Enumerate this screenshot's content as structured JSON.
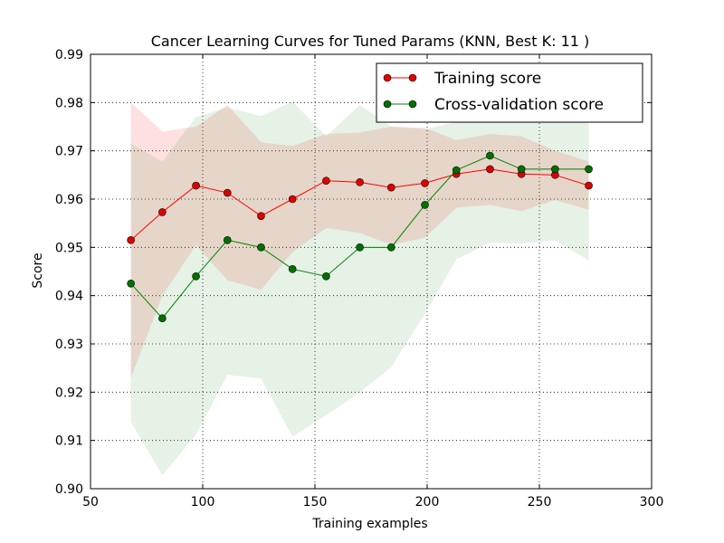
{
  "chart_data": {
    "type": "line",
    "title": "Cancer Learning Curves for Tuned Params (KNN, Best K: 11 )",
    "xlabel": "Training examples",
    "ylabel": "Score",
    "xlim": [
      50,
      300
    ],
    "ylim": [
      0.9,
      0.99
    ],
    "xticks": [
      "50",
      "100",
      "150",
      "200",
      "250",
      "300"
    ],
    "yticks": [
      "0.90",
      "0.91",
      "0.92",
      "0.93",
      "0.94",
      "0.95",
      "0.96",
      "0.97",
      "0.98",
      "0.99"
    ],
    "grid": true,
    "legend_position": "top-right",
    "x": [
      68,
      82,
      97,
      111,
      126,
      140,
      155,
      170,
      184,
      199,
      213,
      228,
      242,
      257,
      272
    ],
    "series": [
      {
        "name": "Training score",
        "color": "#ff0000",
        "marker_color": "#e00000",
        "values": [
          0.9515,
          0.9573,
          0.9628,
          0.9613,
          0.9565,
          0.96,
          0.9638,
          0.9635,
          0.9624,
          0.9633,
          0.9652,
          0.9662,
          0.9652,
          0.965,
          0.9628
        ],
        "band_upper": [
          0.98,
          0.974,
          0.975,
          0.9795,
          0.9718,
          0.971,
          0.9735,
          0.9738,
          0.975,
          0.9748,
          0.9722,
          0.9735,
          0.973,
          0.97,
          0.9678
        ],
        "band_lower": [
          0.923,
          0.94,
          0.9505,
          0.9432,
          0.9412,
          0.949,
          0.954,
          0.953,
          0.9505,
          0.952,
          0.9582,
          0.9588,
          0.9575,
          0.9598,
          0.9578
        ]
      },
      {
        "name": "Cross-validation score",
        "color": "#008000",
        "marker_color": "#007000",
        "values": [
          0.9425,
          0.9353,
          0.944,
          0.9515,
          0.95,
          0.9455,
          0.944,
          0.95,
          0.95,
          0.9588,
          0.966,
          0.969,
          0.9662,
          0.9662,
          0.9662
        ],
        "band_upper": [
          0.9715,
          0.9678,
          0.977,
          0.979,
          0.9772,
          0.9802,
          0.973,
          0.9795,
          0.975,
          0.9745,
          0.976,
          0.976,
          0.9768,
          0.976,
          0.9765
        ],
        "band_lower": [
          0.9138,
          0.9028,
          0.9112,
          0.9236,
          0.9228,
          0.9108,
          0.9152,
          0.92,
          0.9252,
          0.9362,
          0.9475,
          0.951,
          0.9508,
          0.9515,
          0.9473
        ]
      }
    ]
  }
}
